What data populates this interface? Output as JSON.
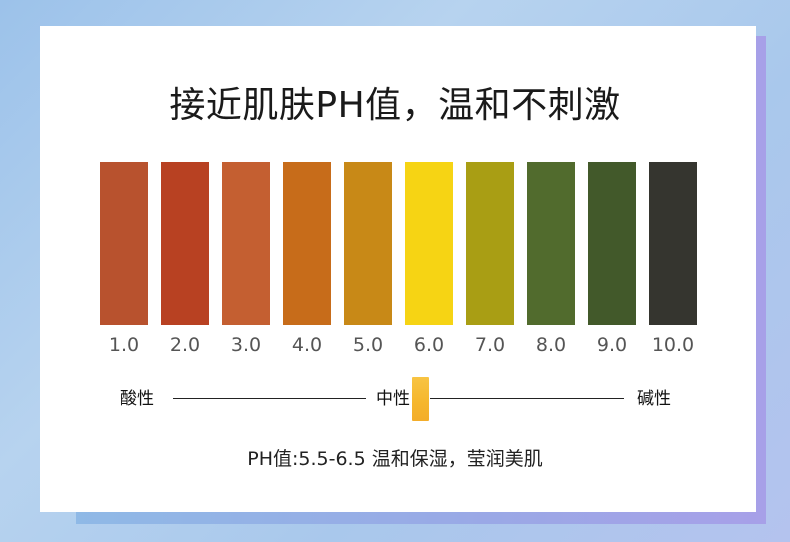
{
  "title": "接近肌肤PH值，温和不刺激",
  "ph_scale": [
    {
      "label": "1.0",
      "color": "#b8522e"
    },
    {
      "label": "2.0",
      "color": "#b84122"
    },
    {
      "label": "3.0",
      "color": "#c45f31"
    },
    {
      "label": "4.0",
      "color": "#c76c1a"
    },
    {
      "label": "5.0",
      "color": "#c88917"
    },
    {
      "label": "6.0",
      "color": "#f6d414"
    },
    {
      "label": "7.0",
      "color": "#a99e14"
    },
    {
      "label": "8.0",
      "color": "#516b2d"
    },
    {
      "label": "9.0",
      "color": "#42592a"
    },
    {
      "label": "10.0",
      "color": "#35352f"
    }
  ],
  "scale_labels": {
    "acid": "酸性",
    "neutral": "中性",
    "alkaline": "碱性"
  },
  "footer": "PH值:5.5-6.5  温和保湿，莹润美肌"
}
